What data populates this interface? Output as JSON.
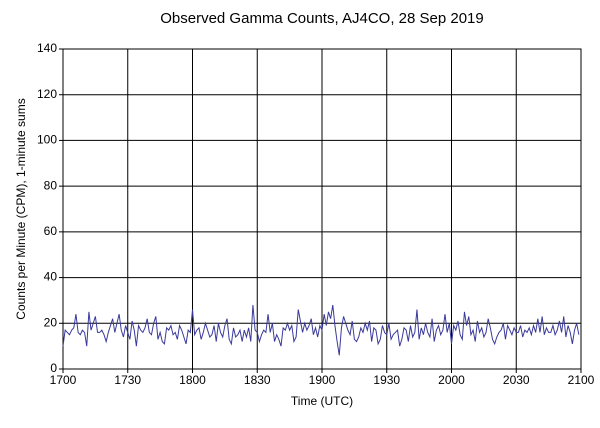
{
  "chart_data": {
    "type": "line",
    "title": "Observed Gamma Counts, AJ4CO, 28 Sep 2019",
    "x_label": "Time (UTC)",
    "y_label": "Counts per Minute (CPM), 1-minute sums",
    "color": "#3a3a9c",
    "grid": true,
    "xlim": [
      1020,
      1260
    ],
    "xticks": [
      {
        "value": 1020,
        "label": "1700"
      },
      {
        "value": 1050,
        "label": "1730"
      },
      {
        "value": 1080,
        "label": "1800"
      },
      {
        "value": 1110,
        "label": "1830"
      },
      {
        "value": 1140,
        "label": "1900"
      },
      {
        "value": 1170,
        "label": "1930"
      },
      {
        "value": 1200,
        "label": "2000"
      },
      {
        "value": 1230,
        "label": "2030"
      },
      {
        "value": 1260,
        "label": "2100"
      }
    ],
    "ylim": [
      0,
      140
    ],
    "yticks": [
      0,
      20,
      40,
      60,
      80,
      100,
      120,
      140
    ],
    "x": [
      1020,
      1021,
      1022,
      1023,
      1024,
      1025,
      1026,
      1027,
      1028,
      1029,
      1030,
      1031,
      1032,
      1033,
      1034,
      1035,
      1036,
      1037,
      1038,
      1039,
      1040,
      1041,
      1042,
      1043,
      1044,
      1045,
      1046,
      1047,
      1048,
      1049,
      1050,
      1051,
      1052,
      1053,
      1054,
      1055,
      1056,
      1057,
      1058,
      1059,
      1060,
      1061,
      1062,
      1063,
      1064,
      1065,
      1066,
      1067,
      1068,
      1069,
      1070,
      1071,
      1072,
      1073,
      1074,
      1075,
      1076,
      1077,
      1078,
      1079,
      1080,
      1081,
      1082,
      1083,
      1084,
      1085,
      1086,
      1087,
      1088,
      1089,
      1090,
      1091,
      1092,
      1093,
      1094,
      1095,
      1096,
      1097,
      1098,
      1099,
      1100,
      1101,
      1102,
      1103,
      1104,
      1105,
      1106,
      1107,
      1108,
      1109,
      1110,
      1111,
      1112,
      1113,
      1114,
      1115,
      1116,
      1117,
      1118,
      1119,
      1120,
      1121,
      1122,
      1123,
      1124,
      1125,
      1126,
      1127,
      1128,
      1129,
      1130,
      1131,
      1132,
      1133,
      1134,
      1135,
      1136,
      1137,
      1138,
      1139,
      1140,
      1141,
      1142,
      1143,
      1144,
      1145,
      1146,
      1147,
      1148,
      1149,
      1150,
      1151,
      1152,
      1153,
      1154,
      1155,
      1156,
      1157,
      1158,
      1159,
      1160,
      1161,
      1162,
      1163,
      1164,
      1165,
      1166,
      1167,
      1168,
      1169,
      1170,
      1171,
      1172,
      1173,
      1174,
      1175,
      1176,
      1177,
      1178,
      1179,
      1180,
      1181,
      1182,
      1183,
      1184,
      1185,
      1186,
      1187,
      1188,
      1189,
      1190,
      1191,
      1192,
      1193,
      1194,
      1195,
      1196,
      1197,
      1198,
      1199,
      1200,
      1201,
      1202,
      1203,
      1204,
      1205,
      1206,
      1207,
      1208,
      1209,
      1210,
      1211,
      1212,
      1213,
      1214,
      1215,
      1216,
      1217,
      1218,
      1219,
      1220,
      1221,
      1222,
      1223,
      1224,
      1225,
      1226,
      1227,
      1228,
      1229,
      1230,
      1231,
      1232,
      1233,
      1234,
      1235,
      1236,
      1237,
      1238,
      1239,
      1240,
      1241,
      1242,
      1243,
      1244,
      1245,
      1246,
      1247,
      1248,
      1249,
      1250,
      1251,
      1252,
      1253,
      1254,
      1255,
      1256,
      1257,
      1258,
      1259
    ],
    "values": [
      10,
      17,
      16,
      15,
      17,
      18,
      24,
      16,
      15,
      17,
      16,
      10,
      25,
      17,
      20,
      23,
      16,
      16,
      17,
      15,
      12,
      16,
      19,
      22,
      16,
      20,
      24,
      17,
      14,
      19,
      16,
      13,
      21,
      17,
      10,
      19,
      17,
      16,
      18,
      22,
      16,
      15,
      20,
      23,
      13,
      16,
      12,
      11,
      18,
      17,
      19,
      15,
      16,
      13,
      19,
      17,
      14,
      11,
      17,
      16,
      26,
      15,
      17,
      18,
      13,
      16,
      20,
      17,
      14,
      15,
      19,
      12,
      20,
      16,
      14,
      19,
      22,
      13,
      11,
      18,
      14,
      15,
      17,
      12,
      17,
      14,
      18,
      12,
      28,
      17,
      16,
      12,
      15,
      17,
      16,
      24,
      16,
      20,
      12,
      15,
      13,
      10,
      18,
      17,
      20,
      17,
      19,
      12,
      14,
      26,
      21,
      16,
      20,
      17,
      19,
      22,
      15,
      18,
      14,
      19,
      17,
      24,
      19,
      25,
      22,
      28,
      19,
      12,
      6,
      18,
      23,
      20,
      17,
      15,
      21,
      13,
      12,
      14,
      18,
      16,
      20,
      17,
      21,
      12,
      18,
      17,
      11,
      13,
      19,
      16,
      15,
      20,
      13,
      15,
      16,
      17,
      10,
      13,
      18,
      17,
      12,
      19,
      14,
      16,
      26,
      13,
      18,
      15,
      20,
      16,
      14,
      22,
      12,
      17,
      19,
      15,
      17,
      24,
      16,
      20,
      11,
      19,
      17,
      21,
      15,
      13,
      25,
      19,
      23,
      15,
      17,
      12,
      21,
      16,
      18,
      14,
      16,
      22,
      18,
      13,
      11,
      14,
      16,
      17,
      20,
      13,
      19,
      17,
      15,
      18,
      16,
      16,
      19,
      14,
      17,
      16,
      18,
      15,
      19,
      16,
      22,
      16,
      23,
      15,
      18,
      16,
      16,
      19,
      15,
      17,
      21,
      16,
      23,
      14,
      19,
      16,
      11,
      17,
      20,
      15
    ]
  }
}
